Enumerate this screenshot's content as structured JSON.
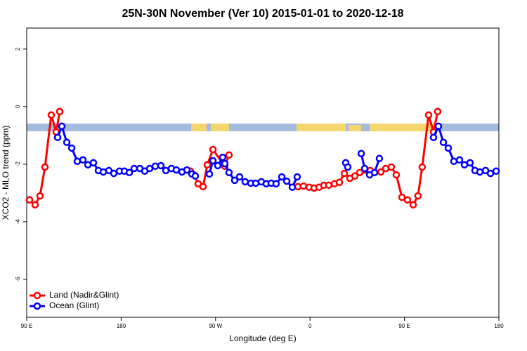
{
  "chart_data": {
    "type": "line",
    "title": "25N-30N November (Ver 10)   2015-01-01 to 2020-12-18",
    "x_label": "Longitude (deg E)",
    "y_label": "XCO2 - MLO trend (ppm)",
    "xlim": [
      90,
      540
    ],
    "ylim": [
      -7.32,
      2.73
    ],
    "xticks": [
      {
        "value": 90,
        "label": "90 E"
      },
      180,
      {
        "value": 270,
        "label": "90 W"
      },
      {
        "value": 360,
        "label": "0"
      },
      {
        "value": 450,
        "label": "90 E"
      },
      {
        "value": 540,
        "label": "180"
      }
    ],
    "yticks": [
      2,
      0,
      -2,
      -4,
      -6
    ],
    "legend": "bottomleft",
    "series": [
      {
        "name": "Land (Nadir&Glint)",
        "color": "#ff0000",
        "x": [
          92.7,
          98.0,
          102.7,
          107.4,
          113.4,
          118.1,
          121.5,
          null,
          246.0,
          249.4,
          253.4,
          258.1,
          262.1,
          267.5,
          278.8,
          282.8,
          null,
          348.5,
          353.8,
          359.2,
          363.9,
          368.6,
          373.2,
          377.9,
          383.3,
          388.0,
          392.7,
          398.0,
          402.7,
          407.4,
          412.1,
          417.4,
          427.5,
          432.2,
          437.5,
          442.2,
          447.6,
          452.9,
          458.3,
          462.9,
          466.9,
          473.0,
          477.7,
          481.7
        ],
        "values": [
          -3.24,
          -3.41,
          -3.1,
          -2.1,
          -0.29,
          -0.88,
          -0.17,
          null,
          -2.24,
          -2.37,
          -2.68,
          -2.78,
          -2.02,
          -1.49,
          -2.07,
          -1.68,
          null,
          -2.78,
          -2.76,
          -2.8,
          -2.83,
          -2.8,
          -2.73,
          -2.73,
          -2.68,
          -2.63,
          -2.32,
          -2.49,
          -2.41,
          -2.29,
          -2.2,
          -2.22,
          -2.27,
          -2.15,
          -2.1,
          -2.37,
          -3.15,
          -3.24,
          -3.41,
          -3.1,
          -2.1,
          -0.29,
          -0.88,
          -0.17
        ]
      },
      {
        "name": "Ocean (Glint)",
        "color": "#0000ff",
        "x": [
          119.5,
          123.5,
          128.2,
          132.9,
          138.2,
          143.6,
          148.3,
          153.6,
          158.3,
          163.0,
          168.3,
          173.0,
          178.4,
          183.1,
          187.8,
          192.4,
          197.8,
          202.5,
          207.2,
          212.5,
          217.9,
          222.6,
          227.9,
          232.6,
          238.0,
          242.7,
          247.4,
          250.7,
          null,
          264.1,
          267.5,
          272.1,
          276.8,
          278.8,
          282.8,
          288.2,
          292.9,
          298.2,
          303.6,
          308.3,
          313.6,
          318.3,
          323.0,
          327.7,
          333.1,
          337.8,
          343.1,
          347.8,
          null,
          394.0,
          396.0,
          null,
          408.8,
          412.1,
          416.8,
          421.5,
          426.1,
          null,
          477.7,
          482.4,
          487.1,
          491.8,
          497.1,
          502.5,
          507.2,
          512.5,
          517.2,
          521.9,
          527.3,
          532.0,
          537.4
        ],
        "values": [
          -1.07,
          -0.68,
          -1.24,
          -1.44,
          -1.9,
          -1.85,
          -2.02,
          -1.95,
          -2.22,
          -2.27,
          -2.22,
          -2.32,
          -2.24,
          -2.24,
          -2.29,
          -2.15,
          -2.15,
          -2.24,
          -2.15,
          -2.07,
          -2.05,
          -2.22,
          -2.15,
          -2.2,
          -2.27,
          -2.2,
          -2.34,
          -2.41,
          null,
          -2.34,
          -1.88,
          -2.05,
          -1.76,
          -1.98,
          -2.29,
          -2.56,
          -2.44,
          -2.61,
          -2.66,
          -2.66,
          -2.61,
          -2.68,
          -2.66,
          -2.68,
          -2.44,
          -2.59,
          -2.8,
          -2.44,
          null,
          -1.95,
          -2.1,
          null,
          -1.63,
          -2.15,
          -2.37,
          -2.29,
          -1.8,
          null,
          -1.07,
          -0.68,
          -1.24,
          -1.44,
          -1.9,
          -1.85,
          -2.02,
          -1.95,
          -2.22,
          -2.27,
          -2.22,
          -2.32,
          -2.24
        ]
      }
    ]
  }
}
